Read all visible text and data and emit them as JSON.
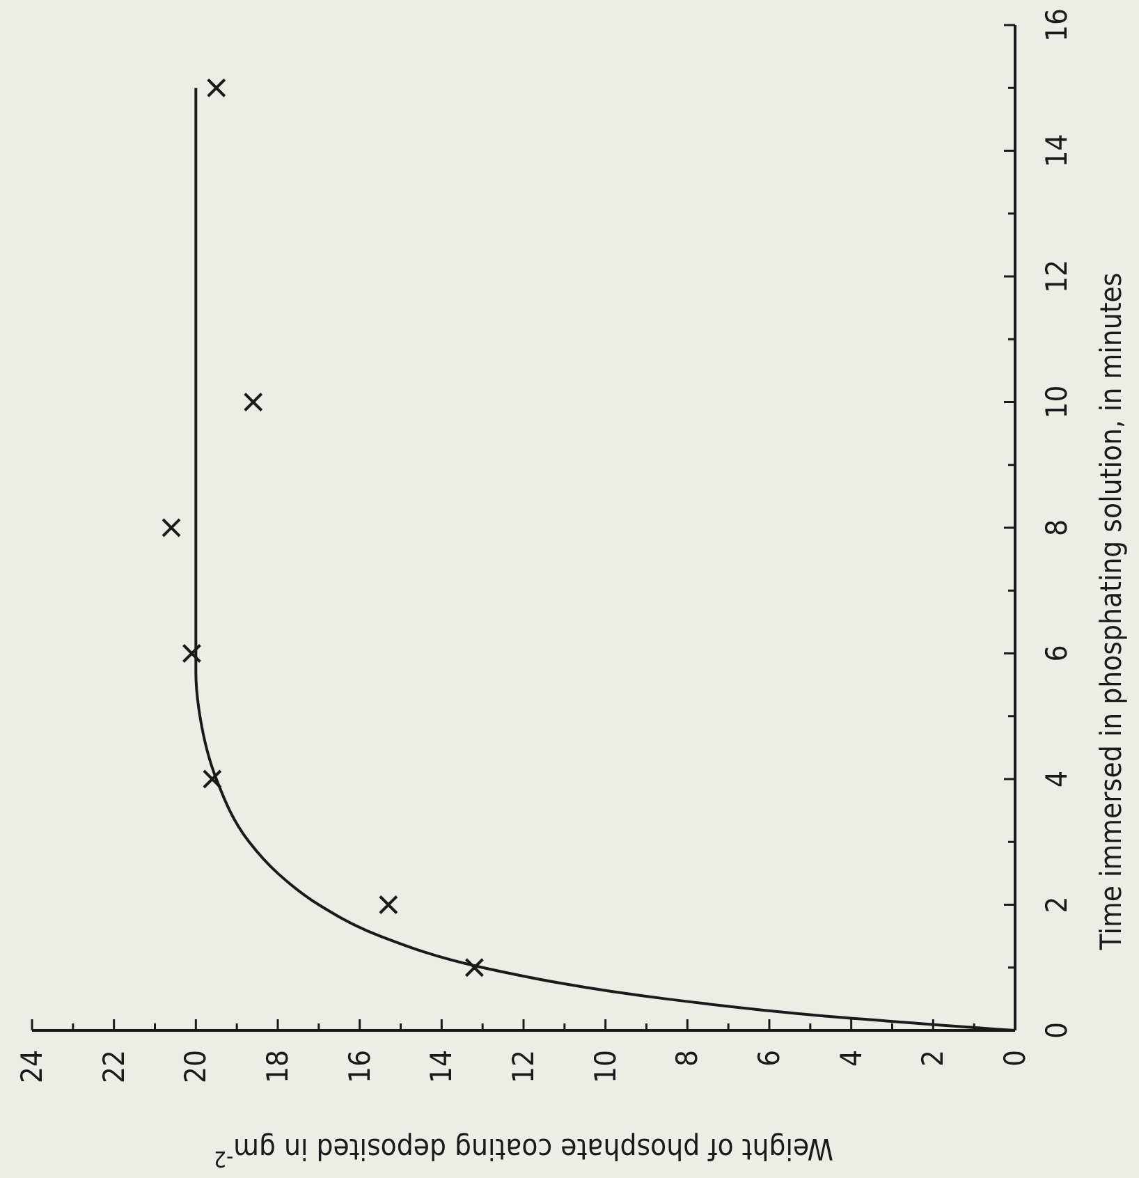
{
  "chart_data": {
    "type": "scatter",
    "xlabel": "Weight of phosphate coating deposited in gm$^{-2}$",
    "ylabel": "Time immersed in phosphating solution, in minutes",
    "xlim": [
      24,
      0
    ],
    "ylim": [
      0,
      16
    ],
    "xticks": [
      24,
      {
        "value": 23,
        "label": null
      },
      22,
      {
        "value": 21,
        "label": null
      },
      20,
      {
        "value": 19,
        "label": null
      },
      18,
      {
        "value": 17,
        "label": null
      },
      16,
      {
        "value": 15,
        "label": null
      },
      14,
      {
        "value": 13,
        "label": null
      },
      12,
      {
        "value": 11,
        "label": null
      },
      10,
      {
        "value": 9,
        "label": null
      },
      8,
      {
        "value": 7,
        "label": null
      },
      6,
      {
        "value": 5,
        "label": null
      },
      4,
      {
        "value": 3,
        "label": null
      },
      2,
      {
        "value": 1,
        "label": null
      },
      0
    ],
    "yticks": [
      0,
      {
        "value": 1,
        "label": null
      },
      2,
      {
        "value": 3,
        "label": null
      },
      4,
      {
        "value": 5,
        "label": null
      },
      6,
      {
        "value": 7,
        "label": null
      },
      8,
      {
        "value": 9,
        "label": null
      },
      10,
      {
        "value": 11,
        "label": null
      },
      12,
      {
        "value": 13,
        "label": null
      },
      14,
      {
        "value": 15,
        "label": null
      },
      16
    ],
    "marker": "cross",
    "series": [
      {
        "color": "#1a1a1a",
        "x": [
          13.2,
          15.3,
          19.6,
          20.1,
          20.6,
          18.6,
          19.5
        ],
        "values": [
          1,
          2,
          4,
          6,
          8,
          10,
          15
        ]
      },
      {
        "type": "line",
        "color": "#1a1a1a",
        "marker": "none",
        "line_style": "solid",
        "x": [
          0,
          5,
          8.5,
          13,
          15.5,
          17,
          18,
          18.7,
          19.5,
          19.9,
          20,
          20
        ],
        "values": [
          0,
          0.25,
          0.5,
          1,
          1.5,
          2,
          2.5,
          3,
          4,
          5,
          5.7,
          15
        ]
      }
    ]
  }
}
